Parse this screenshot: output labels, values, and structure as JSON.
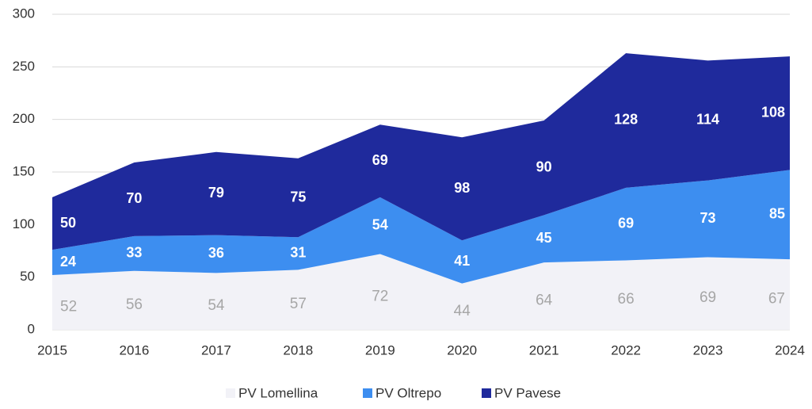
{
  "chart_data": {
    "type": "stacked_area",
    "x": [
      2015,
      2016,
      2017,
      2018,
      2019,
      2020,
      2021,
      2022,
      2023,
      2024
    ],
    "series": [
      {
        "name": "PV Lomellina",
        "color": "#f2f2f7",
        "label_color": "#a6a6a6",
        "values": [
          52,
          56,
          54,
          57,
          72,
          44,
          64,
          66,
          69,
          67
        ]
      },
      {
        "name": "PV Oltrepo",
        "color": "#3d8ef0",
        "label_color": "#ffffff",
        "values": [
          24,
          33,
          36,
          31,
          54,
          41,
          45,
          69,
          73,
          85
        ]
      },
      {
        "name": "PV Pavese",
        "color": "#1f2a9c",
        "label_color": "#ffffff",
        "values": [
          50,
          70,
          79,
          75,
          69,
          98,
          90,
          128,
          114,
          108
        ]
      }
    ],
    "xlim": [
      2015,
      2024
    ],
    "xticks": [
      2015,
      2016,
      2017,
      2018,
      2019,
      2020,
      2021,
      2022,
      2023,
      2024
    ],
    "ylim": [
      0,
      300
    ],
    "yticks": [
      0,
      50,
      100,
      150,
      200,
      250,
      300
    ],
    "grid": true,
    "legend": "bottom"
  }
}
